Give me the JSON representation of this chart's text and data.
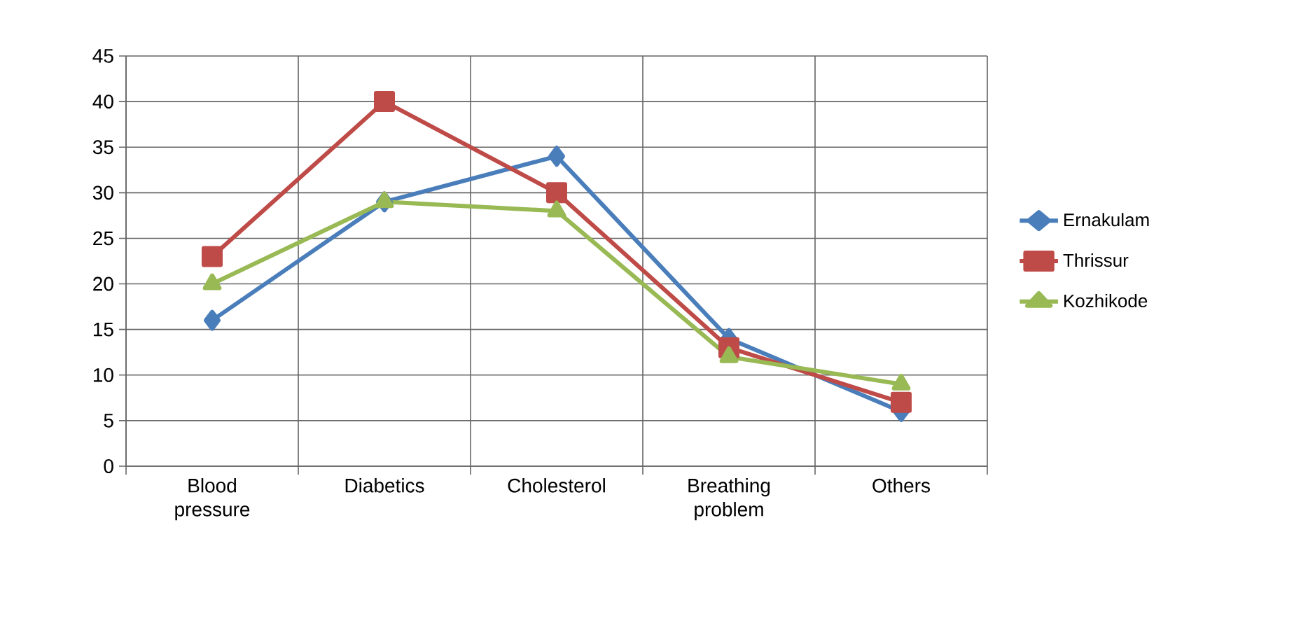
{
  "chart_data": {
    "type": "line",
    "categories": [
      "Blood pressure",
      "Diabetics",
      "Cholesterol",
      "Breathing problem",
      "Others"
    ],
    "series": [
      {
        "name": "Ernakulam",
        "color": "#4a7ebb",
        "marker": "diamond",
        "values": [
          16,
          29,
          34,
          14,
          6
        ]
      },
      {
        "name": "Thrissur",
        "color": "#be4b48",
        "marker": "square",
        "values": [
          23,
          40,
          30,
          13,
          7
        ]
      },
      {
        "name": "Kozhikode",
        "color": "#98b954",
        "marker": "triangle",
        "values": [
          20,
          29,
          28,
          12,
          9
        ]
      }
    ],
    "ylim": [
      0,
      45
    ],
    "yticks": [
      0,
      5,
      10,
      15,
      20,
      25,
      30,
      35,
      40,
      45
    ],
    "grid": true,
    "legend": "right",
    "line_style": "solid"
  }
}
